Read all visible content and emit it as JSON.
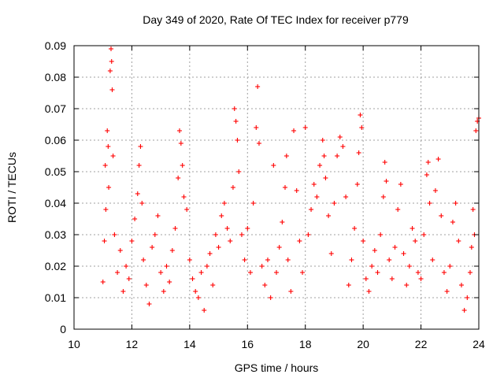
{
  "chart_data": {
    "type": "scatter",
    "title": "Day 349 of 2020, Rate Of TEC Index for receiver p779",
    "xlabel": "GPS time / hours",
    "ylabel": "ROTI / TECUs",
    "xlim": [
      10,
      24
    ],
    "ylim": [
      0,
      0.09
    ],
    "x_ticks": [
      10,
      12,
      14,
      16,
      18,
      20,
      22,
      24
    ],
    "x_tick_labels": [
      "10",
      "12",
      "14",
      "16",
      "18",
      "20",
      "22",
      "24"
    ],
    "y_ticks": [
      0,
      0.01,
      0.02,
      0.03,
      0.04,
      0.05,
      0.06,
      0.07,
      0.08,
      0.09
    ],
    "y_tick_labels": [
      "0",
      "0.01",
      "0.02",
      "0.03",
      "0.04",
      "0.05",
      "0.06",
      "0.07",
      "0.08",
      "0.09"
    ],
    "grid": true,
    "marker": "+",
    "color": "#ff0000",
    "series": [
      {
        "name": "ROTI p779",
        "points": [
          [
            11.0,
            0.015
          ],
          [
            11.05,
            0.028
          ],
          [
            11.08,
            0.052
          ],
          [
            11.1,
            0.038
          ],
          [
            11.15,
            0.063
          ],
          [
            11.18,
            0.058
          ],
          [
            11.2,
            0.045
          ],
          [
            11.25,
            0.082
          ],
          [
            11.28,
            0.089
          ],
          [
            11.3,
            0.085
          ],
          [
            11.32,
            0.076
          ],
          [
            11.35,
            0.055
          ],
          [
            11.4,
            0.03
          ],
          [
            11.5,
            0.018
          ],
          [
            11.6,
            0.025
          ],
          [
            11.7,
            0.012
          ],
          [
            11.8,
            0.02
          ],
          [
            11.9,
            0.016
          ],
          [
            12.0,
            0.028
          ],
          [
            12.1,
            0.035
          ],
          [
            12.2,
            0.043
          ],
          [
            12.25,
            0.052
          ],
          [
            12.3,
            0.058
          ],
          [
            12.35,
            0.04
          ],
          [
            12.4,
            0.022
          ],
          [
            12.5,
            0.014
          ],
          [
            12.6,
            0.008
          ],
          [
            12.7,
            0.026
          ],
          [
            12.8,
            0.03
          ],
          [
            12.9,
            0.036
          ],
          [
            13.0,
            0.018
          ],
          [
            13.1,
            0.012
          ],
          [
            13.2,
            0.02
          ],
          [
            13.3,
            0.015
          ],
          [
            13.4,
            0.025
          ],
          [
            13.5,
            0.032
          ],
          [
            13.6,
            0.048
          ],
          [
            13.65,
            0.063
          ],
          [
            13.7,
            0.059
          ],
          [
            13.75,
            0.052
          ],
          [
            13.8,
            0.042
          ],
          [
            13.9,
            0.038
          ],
          [
            14.0,
            0.022
          ],
          [
            14.1,
            0.016
          ],
          [
            14.2,
            0.012
          ],
          [
            14.3,
            0.01
          ],
          [
            14.4,
            0.018
          ],
          [
            14.5,
            0.006
          ],
          [
            14.6,
            0.02
          ],
          [
            14.7,
            0.024
          ],
          [
            14.8,
            0.014
          ],
          [
            14.9,
            0.03
          ],
          [
            15.0,
            0.026
          ],
          [
            15.1,
            0.036
          ],
          [
            15.2,
            0.04
          ],
          [
            15.3,
            0.032
          ],
          [
            15.4,
            0.028
          ],
          [
            15.5,
            0.045
          ],
          [
            15.55,
            0.07
          ],
          [
            15.6,
            0.066
          ],
          [
            15.65,
            0.06
          ],
          [
            15.7,
            0.05
          ],
          [
            15.8,
            0.03
          ],
          [
            15.9,
            0.022
          ],
          [
            16.0,
            0.032
          ],
          [
            16.1,
            0.018
          ],
          [
            16.2,
            0.04
          ],
          [
            16.3,
            0.064
          ],
          [
            16.35,
            0.077
          ],
          [
            16.4,
            0.059
          ],
          [
            16.5,
            0.02
          ],
          [
            16.6,
            0.014
          ],
          [
            16.7,
            0.022
          ],
          [
            16.8,
            0.01
          ],
          [
            16.9,
            0.052
          ],
          [
            17.0,
            0.018
          ],
          [
            17.1,
            0.026
          ],
          [
            17.2,
            0.034
          ],
          [
            17.3,
            0.045
          ],
          [
            17.35,
            0.055
          ],
          [
            17.4,
            0.022
          ],
          [
            17.5,
            0.012
          ],
          [
            17.6,
            0.063
          ],
          [
            17.7,
            0.044
          ],
          [
            17.8,
            0.028
          ],
          [
            17.9,
            0.018
          ],
          [
            18.0,
            0.064
          ],
          [
            18.1,
            0.03
          ],
          [
            18.2,
            0.038
          ],
          [
            18.3,
            0.046
          ],
          [
            18.4,
            0.042
          ],
          [
            18.5,
            0.052
          ],
          [
            18.6,
            0.06
          ],
          [
            18.65,
            0.055
          ],
          [
            18.7,
            0.048
          ],
          [
            18.8,
            0.036
          ],
          [
            18.9,
            0.024
          ],
          [
            19.0,
            0.04
          ],
          [
            19.1,
            0.055
          ],
          [
            19.2,
            0.061
          ],
          [
            19.3,
            0.058
          ],
          [
            19.4,
            0.042
          ],
          [
            19.5,
            0.014
          ],
          [
            19.6,
            0.022
          ],
          [
            19.7,
            0.032
          ],
          [
            19.8,
            0.046
          ],
          [
            19.85,
            0.056
          ],
          [
            19.9,
            0.068
          ],
          [
            19.95,
            0.064
          ],
          [
            20.0,
            0.028
          ],
          [
            20.1,
            0.016
          ],
          [
            20.2,
            0.012
          ],
          [
            20.3,
            0.02
          ],
          [
            20.4,
            0.025
          ],
          [
            20.5,
            0.018
          ],
          [
            20.6,
            0.03
          ],
          [
            20.7,
            0.042
          ],
          [
            20.75,
            0.053
          ],
          [
            20.8,
            0.047
          ],
          [
            20.9,
            0.022
          ],
          [
            21.0,
            0.016
          ],
          [
            21.1,
            0.026
          ],
          [
            21.2,
            0.038
          ],
          [
            21.3,
            0.046
          ],
          [
            21.4,
            0.024
          ],
          [
            21.5,
            0.014
          ],
          [
            21.6,
            0.02
          ],
          [
            21.7,
            0.032
          ],
          [
            21.8,
            0.028
          ],
          [
            21.9,
            0.018
          ],
          [
            22.0,
            0.016
          ],
          [
            22.1,
            0.03
          ],
          [
            22.2,
            0.049
          ],
          [
            22.25,
            0.053
          ],
          [
            22.3,
            0.04
          ],
          [
            22.4,
            0.022
          ],
          [
            22.5,
            0.044
          ],
          [
            22.6,
            0.054
          ],
          [
            22.7,
            0.036
          ],
          [
            22.8,
            0.018
          ],
          [
            22.9,
            0.012
          ],
          [
            23.0,
            0.02
          ],
          [
            23.1,
            0.034
          ],
          [
            23.2,
            0.04
          ],
          [
            23.3,
            0.028
          ],
          [
            23.4,
            0.014
          ],
          [
            23.5,
            0.006
          ],
          [
            23.6,
            0.01
          ],
          [
            23.7,
            0.018
          ],
          [
            23.75,
            0.026
          ],
          [
            23.8,
            0.038
          ],
          [
            23.85,
            0.03
          ],
          [
            23.9,
            0.063
          ],
          [
            23.95,
            0.066
          ],
          [
            24.0,
            0.067
          ]
        ]
      }
    ]
  }
}
